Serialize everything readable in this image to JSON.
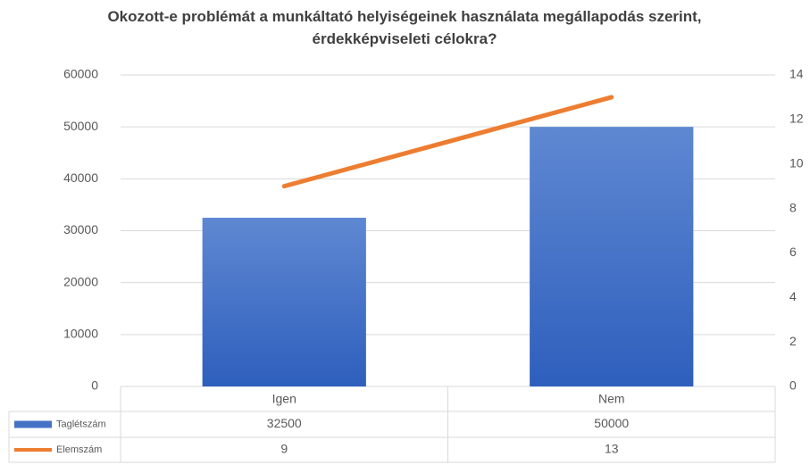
{
  "chart_data": {
    "type": "bar",
    "title": "Okozott-e problémát a munkáltató helyiségeinek használata megállapodás szerint, érdekképviseleti célokra?",
    "categories": [
      "Igen",
      "Nem"
    ],
    "series": [
      {
        "name": "Taglétszám",
        "color": "#4472c4",
        "type": "bar",
        "values": [
          32500,
          50000
        ]
      },
      {
        "name": "Elemszám",
        "color": "#ed7d31",
        "type": "line",
        "axis": "y2",
        "values": [
          9,
          13
        ]
      }
    ],
    "ylim": [
      0,
      60000
    ],
    "yticks": [
      0,
      10000,
      20000,
      30000,
      40000,
      50000,
      60000
    ],
    "y2lim": [
      0,
      14
    ],
    "y2ticks": [
      0,
      2,
      4,
      6,
      8,
      10,
      12,
      14
    ],
    "grid": true,
    "legend": "data-table"
  }
}
